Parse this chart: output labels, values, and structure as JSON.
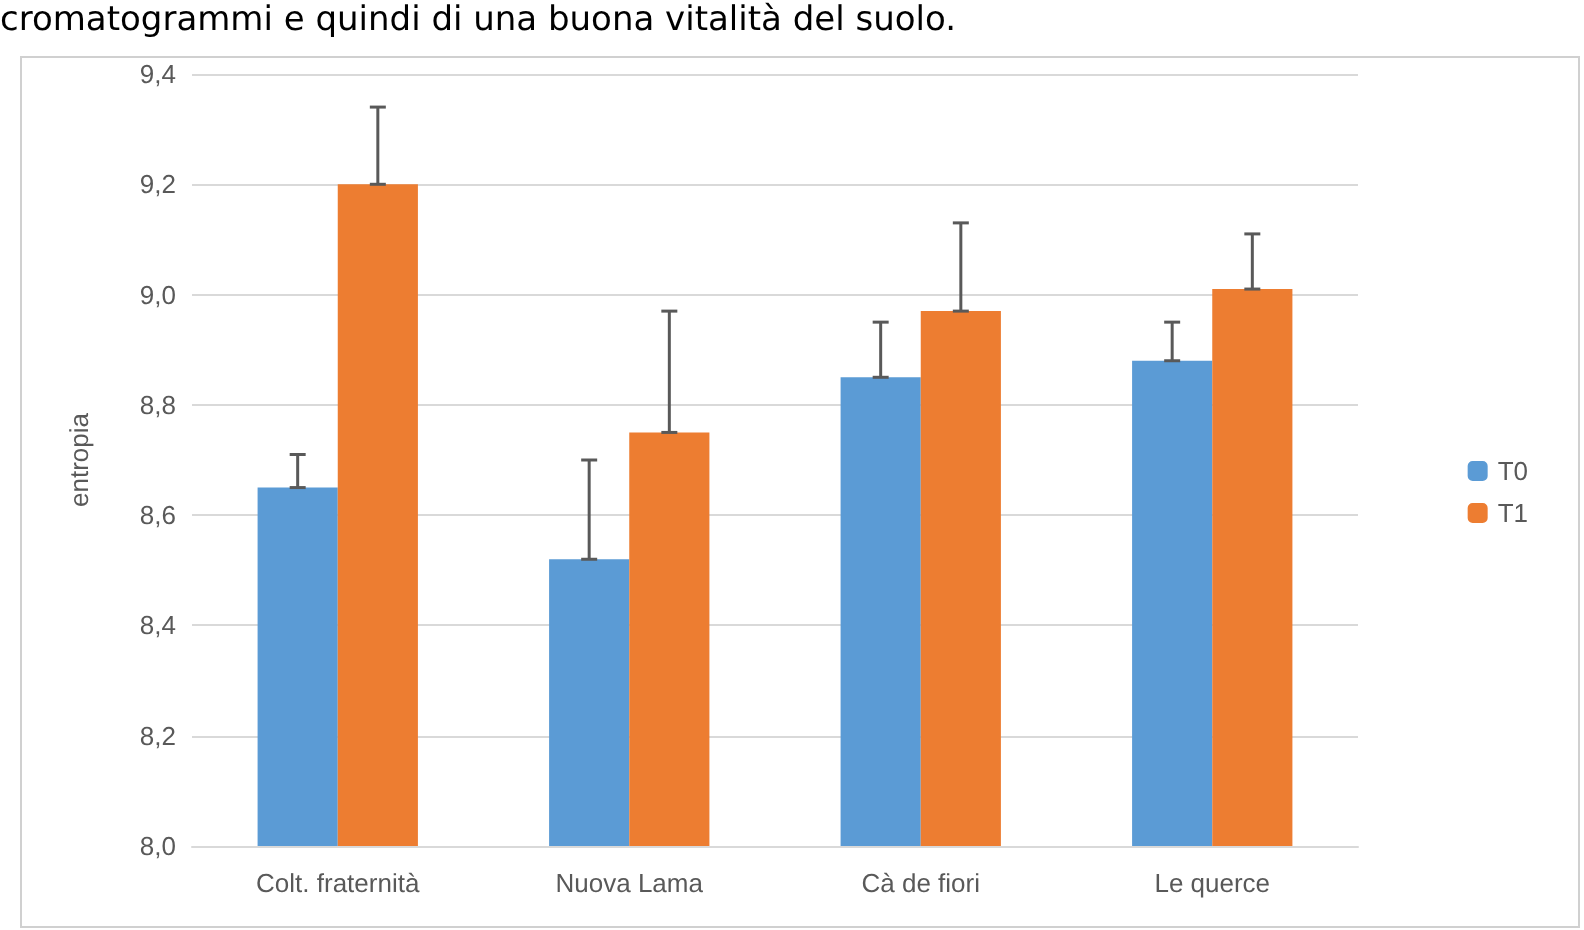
{
  "chart_data": {
    "type": "bar",
    "ylabel": "entropia",
    "annotations": [
      "cromatogrammi e quindi di una buona vitalità del suolo."
    ],
    "categories": [
      "Colt. fraternità",
      "Nuova Lama",
      "Cà de fiori",
      "Le querce"
    ],
    "series": [
      {
        "name": "T0",
        "color": "#5b9bd5",
        "values": [
          8.65,
          8.52,
          8.85,
          8.88
        ],
        "errors": [
          [
            8.65,
            8.71
          ],
          [
            8.52,
            8.7
          ],
          [
            8.85,
            8.95
          ],
          [
            8.88,
            8.95
          ]
        ]
      },
      {
        "name": "T1",
        "color": "#ed7d31",
        "values": [
          9.2,
          8.75,
          8.97,
          9.01
        ],
        "errors": [
          [
            9.2,
            9.34
          ],
          [
            8.75,
            8.97
          ],
          [
            8.97,
            9.13
          ],
          [
            9.01,
            9.11
          ]
        ]
      }
    ],
    "ylim": [
      8.0,
      9.4
    ],
    "yticks": [
      {
        "value": 8.0,
        "label": "8,0"
      },
      {
        "value": 8.2,
        "label": "8,2"
      },
      {
        "value": 8.4,
        "label": "8,4"
      },
      {
        "value": 8.6,
        "label": "8,6"
      },
      {
        "value": 8.8,
        "label": "8,8"
      },
      {
        "value": 9.0,
        "label": "9,0"
      },
      {
        "value": 9.2,
        "label": "9,2"
      },
      {
        "value": 9.4,
        "label": "9,4"
      }
    ],
    "grid": "y",
    "legend": "right"
  }
}
